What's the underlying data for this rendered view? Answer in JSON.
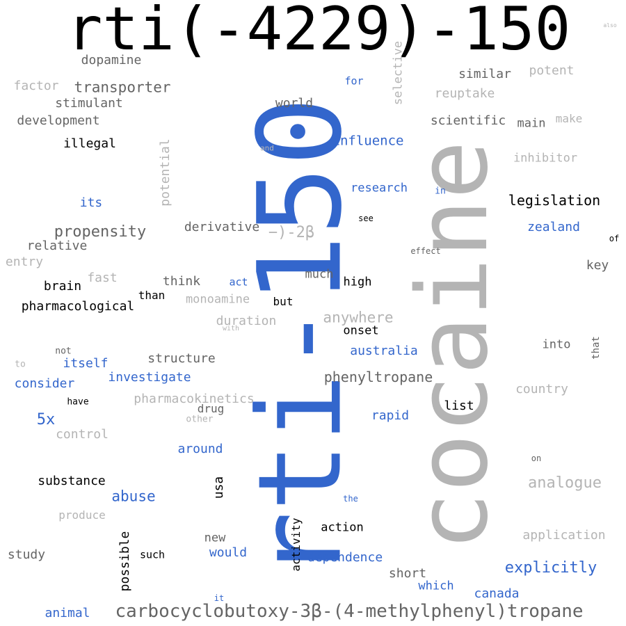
{
  "palette": {
    "black": "#000000",
    "dark_gray": "#646464",
    "light_gray": "#b4b4b4",
    "blue": "#3366cc",
    "background": "#ffffff"
  },
  "words": {
    "w001": "rti(-4229)-150",
    "w002": "rti-150",
    "w003": "cocaine",
    "w004": "carbocyclobutoxy-3β-(4-methylphenyl)tropane",
    "w005": "dopamine",
    "w006": "factor",
    "w007": "transporter",
    "w008": "stimulant",
    "w009": "development",
    "w010": "illegal",
    "w011": "similar",
    "w012": "potent",
    "w013": "for",
    "w014": "selective",
    "w015": "reuptake",
    "w016": "world",
    "w017": "scientific",
    "w018": "main",
    "w019": "make",
    "w020": "influence",
    "w021": "and",
    "w022": "potential",
    "w023": "inhibitor",
    "w024": "its",
    "w025": "research",
    "w026": "in",
    "w027": "legislation",
    "w028": "see",
    "w029": "zealand",
    "w030": "propensity",
    "w031": "derivative",
    "w032": "−)-2β",
    "w033": "of",
    "w034": "relative",
    "w035": "effect",
    "w036": "entry",
    "w037": "key",
    "w038": "fast",
    "w039": "much",
    "w040": "brain",
    "w041": "think",
    "w042": "act",
    "w043": "high",
    "w044": "than",
    "w045": "pharmacological",
    "w046": "monoamine",
    "w047": "but",
    "w048": "anywhere",
    "w049": "duration",
    "w050": "onset",
    "w051": "with",
    "w052": "not",
    "w053": "into",
    "w054": "that",
    "w055": "australia",
    "w056": "to",
    "w057": "itself",
    "w058": "structure",
    "w059": "consider",
    "w060": "investigate",
    "w061": "phenyltropane",
    "w062": "have",
    "w063": "pharmacokinetics",
    "w064": "country",
    "w065": "drug",
    "w066": "5x",
    "w067": "other",
    "w068": "list",
    "w069": "rapid",
    "w070": "control",
    "w071": "around",
    "w072": "on",
    "w073": "substance",
    "w074": "usa",
    "w075": "analogue",
    "w076": "abuse",
    "w077": "the",
    "w078": "produce",
    "w079": "activity",
    "w080": "action",
    "w081": "application",
    "w082": "new",
    "w083": "study",
    "w084": "possible",
    "w085": "such",
    "w086": "would",
    "w087": "dependence",
    "w088": "explicitly",
    "w089": "short",
    "w090": "which",
    "w091": "canada",
    "w092": "it",
    "w093": "animal",
    "w094": "also"
  }
}
